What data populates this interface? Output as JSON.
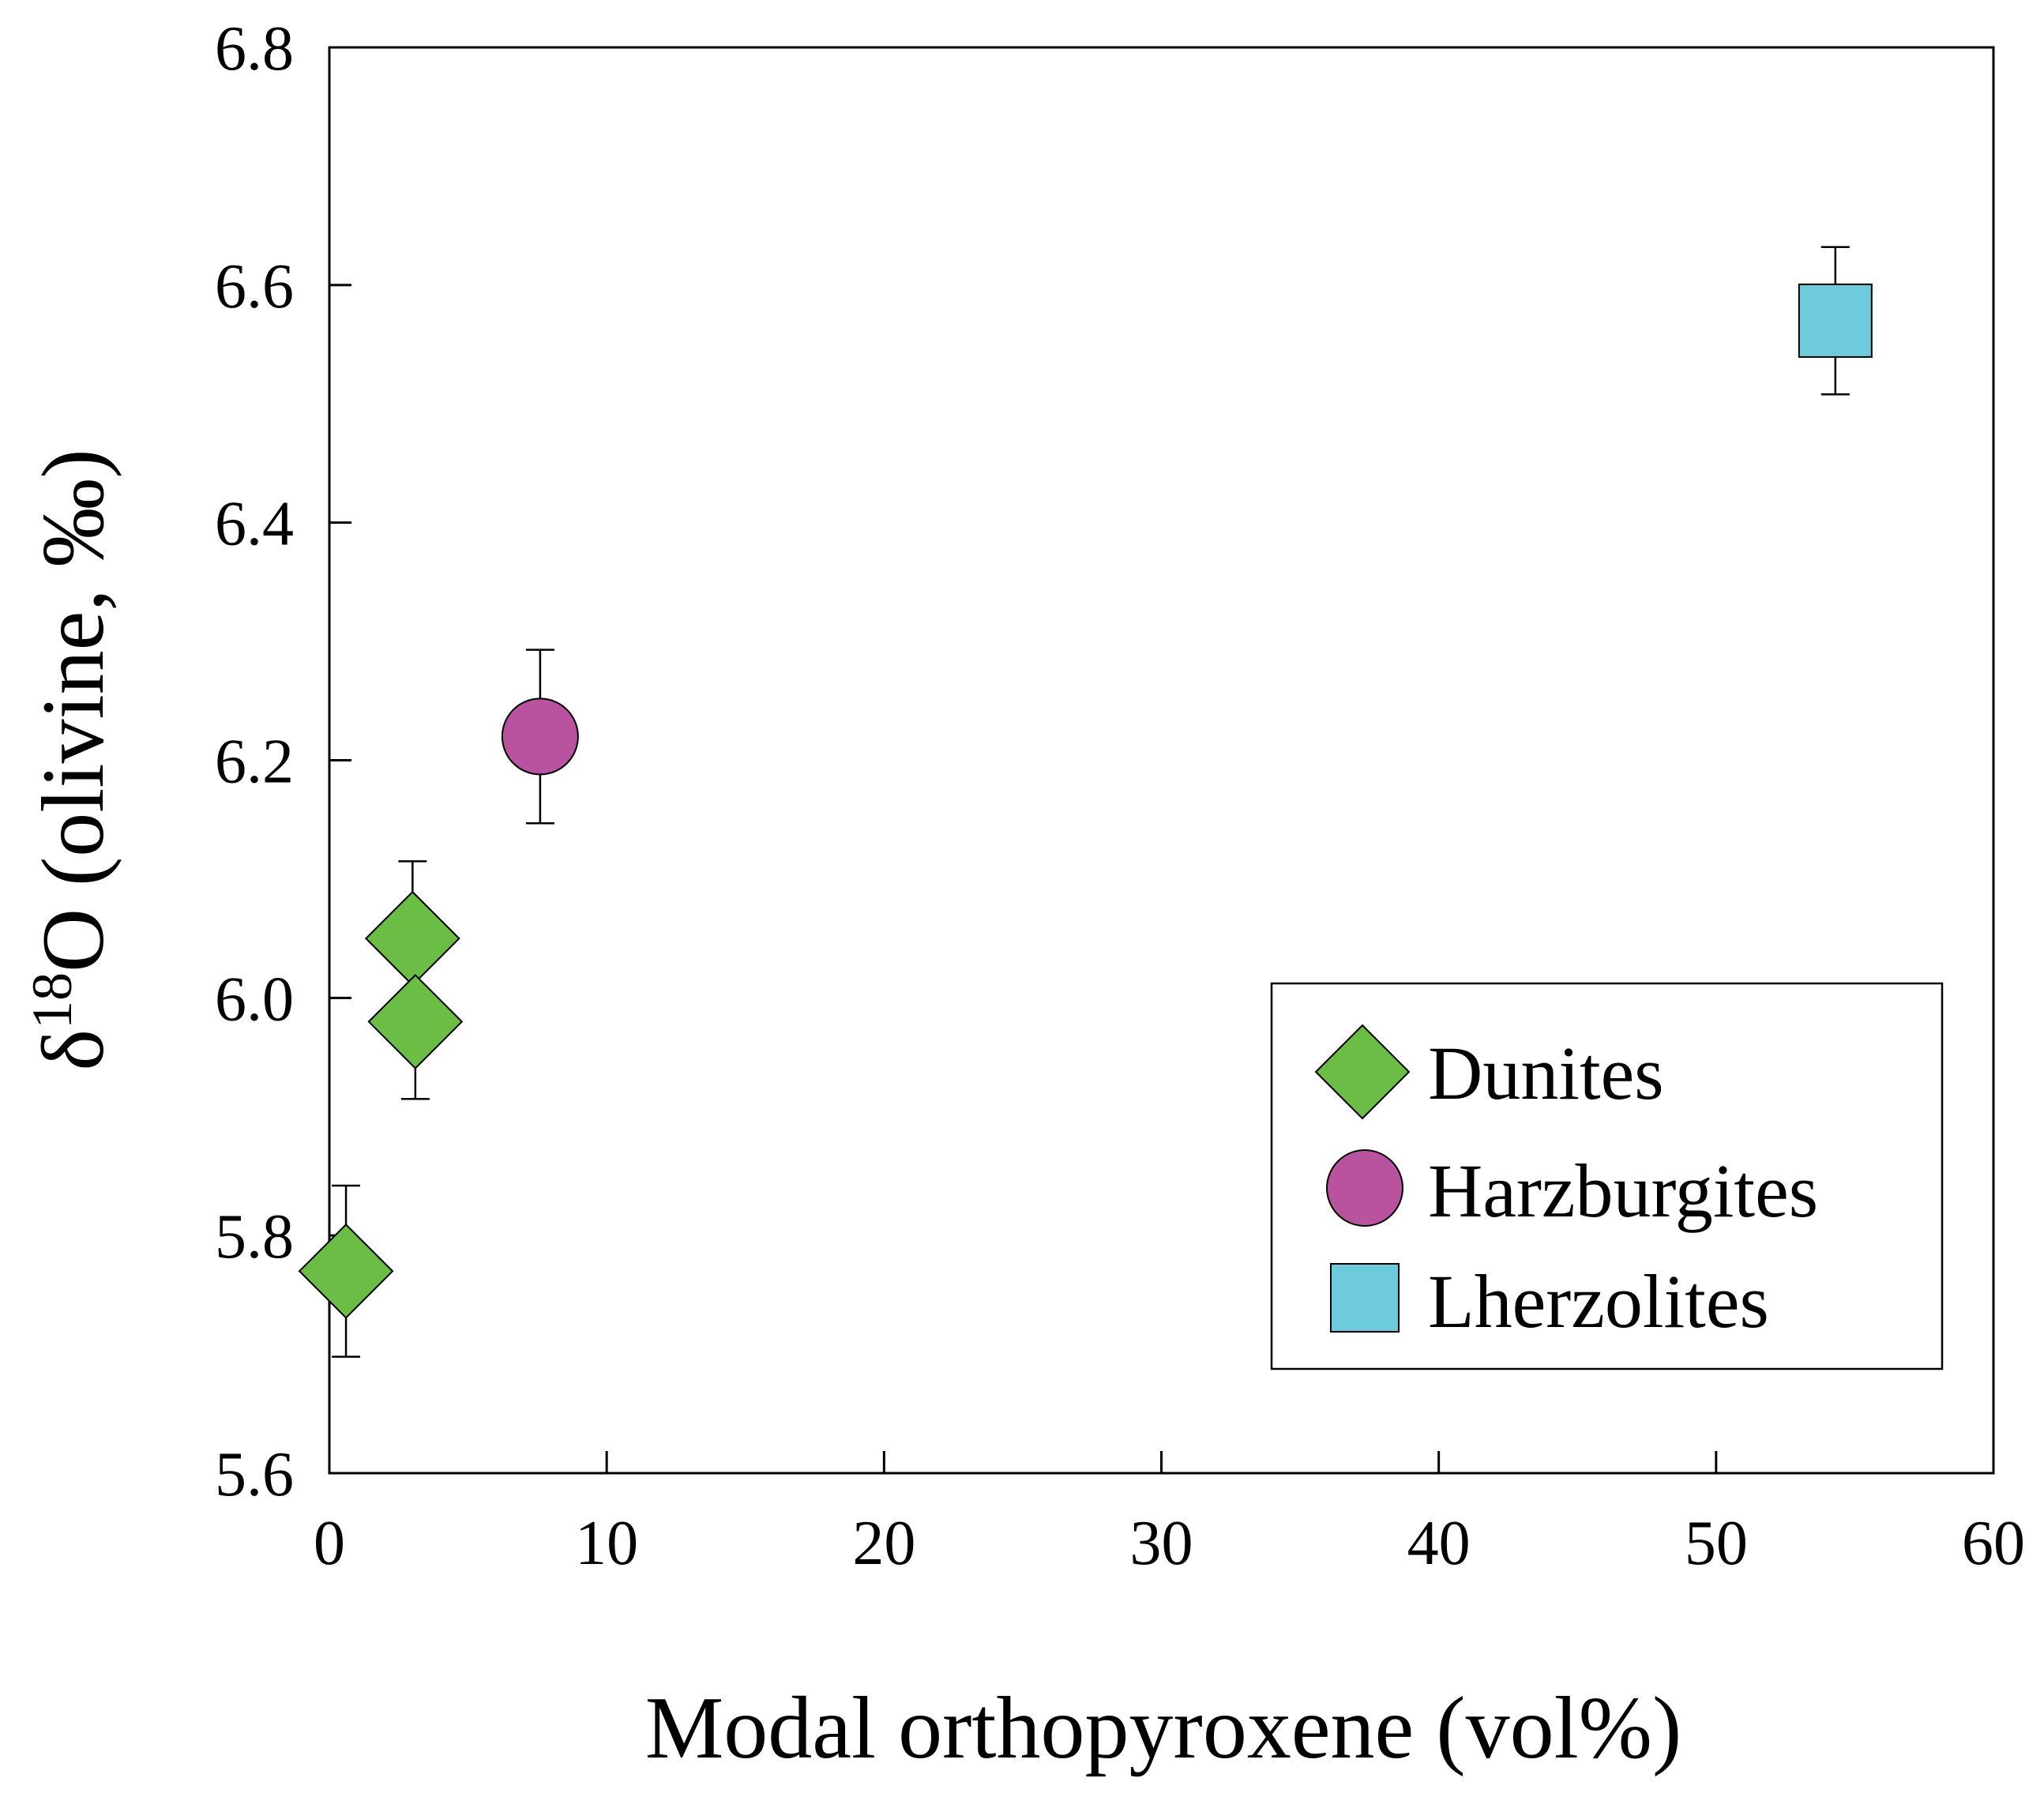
{
  "chart_data": {
    "type": "scatter",
    "title": "",
    "xlabel": "Modal orthopyroxene  (vol%)",
    "ylabel": {
      "prefix": "δ",
      "superscript": "18",
      "main": "O (olivine, ‰)"
    },
    "xlim": [
      0,
      60
    ],
    "ylim": [
      5.6,
      6.8
    ],
    "xticks": [
      0,
      10,
      20,
      30,
      40,
      50,
      60
    ],
    "yticks": [
      5.6,
      5.8,
      6.0,
      6.2,
      6.4,
      6.6,
      6.8
    ],
    "xtick_labels": [
      "0",
      "10",
      "20",
      "30",
      "40",
      "50",
      "60"
    ],
    "ytick_labels": [
      "5.6",
      "5.8",
      "6.0",
      "6.2",
      "6.4",
      "6.6",
      "6.8"
    ],
    "grid": false,
    "legend_position": "lower-right",
    "series": [
      {
        "name": "Dunites",
        "marker": "diamond",
        "color": "#6cbd45",
        "points": [
          {
            "x": 0.6,
            "y": 5.77,
            "err": 0.072
          },
          {
            "x": 3.0,
            "y": 6.05,
            "err": 0.065
          },
          {
            "x": 3.1,
            "y": 5.98,
            "err": 0.065
          }
        ]
      },
      {
        "name": "Harzburgites",
        "marker": "circle",
        "color": "#b9539f",
        "points": [
          {
            "x": 7.6,
            "y": 6.22,
            "err": 0.073
          }
        ]
      },
      {
        "name": "Lherzolites",
        "marker": "square",
        "color": "#6dcbdb",
        "points": [
          {
            "x": 54.3,
            "y": 6.57,
            "err": 0.062
          }
        ]
      }
    ]
  }
}
